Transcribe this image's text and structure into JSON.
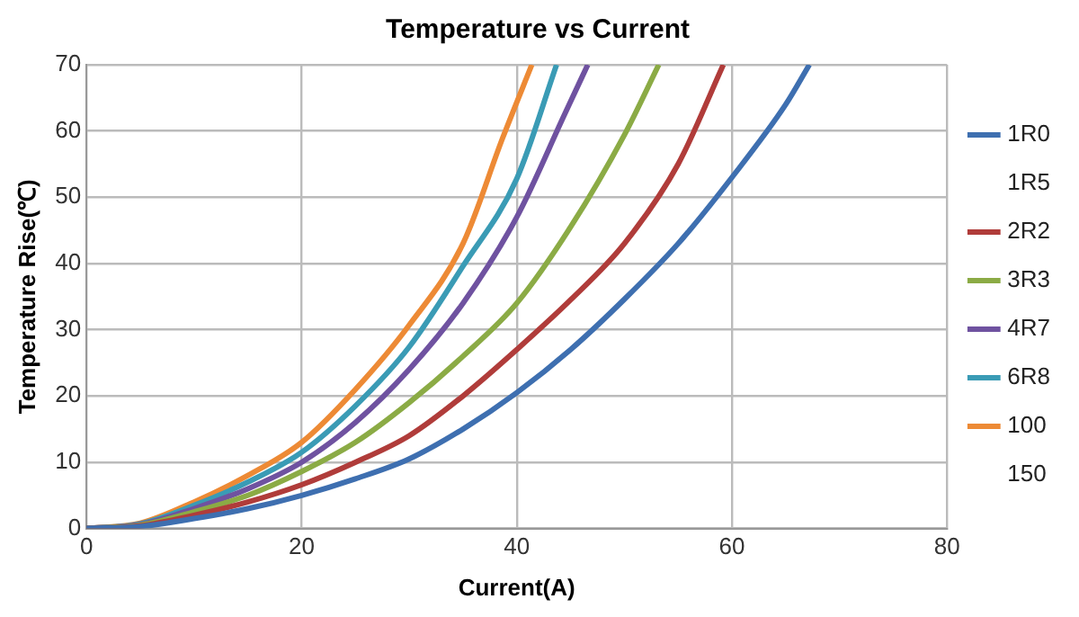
{
  "chart_data": {
    "type": "line",
    "title": "Temperature vs Current",
    "xlabel": "Current(A)",
    "ylabel": "Temperature Rise(℃)",
    "xlim": [
      0,
      80
    ],
    "xticks": [
      0,
      20,
      40,
      60,
      80
    ],
    "ylim": [
      0,
      70
    ],
    "yticks": [
      0,
      10,
      20,
      30,
      40,
      50,
      60,
      70
    ],
    "grid": true,
    "legend": "right",
    "marker": "none",
    "line_style": "solid",
    "series": [
      {
        "name": "1R0",
        "color": "#3e6fb0",
        "x": [
          0,
          5,
          10,
          15,
          20,
          25,
          30,
          35,
          40,
          45,
          50,
          55,
          60,
          65,
          67.2
        ],
        "values": [
          0,
          0.3,
          1.5,
          3,
          5,
          7.5,
          10.5,
          15,
          20.5,
          27,
          34.6,
          43,
          53,
          64,
          70
        ]
      },
      {
        "name": "1R5",
        "color": null
      },
      {
        "name": "2R2",
        "color": "#b03c3a",
        "x": [
          0,
          5,
          10,
          15,
          20,
          25,
          30,
          35,
          40,
          45,
          50,
          55,
          59.2
        ],
        "values": [
          0,
          0.4,
          2,
          4,
          6.6,
          10,
          14,
          20,
          27,
          34.5,
          43,
          55,
          70
        ]
      },
      {
        "name": "3R3",
        "color": "#8bab45",
        "x": [
          0,
          5,
          10,
          15,
          20,
          25,
          30,
          35,
          40,
          45,
          50,
          53.2
        ],
        "values": [
          0,
          0.5,
          2.5,
          5,
          8.6,
          13,
          19,
          26,
          34,
          45.5,
          59.4,
          70
        ]
      },
      {
        "name": "4R7",
        "color": "#6f52a0",
        "x": [
          0,
          5,
          10,
          15,
          20,
          25,
          30,
          35,
          40,
          44.5,
          46.6
        ],
        "values": [
          0,
          0.6,
          3,
          6,
          10,
          16,
          24,
          34,
          47,
          62.7,
          70
        ]
      },
      {
        "name": "6R8",
        "color": "#3a9bb5",
        "x": [
          0,
          5,
          10,
          15,
          20,
          25,
          30,
          35,
          40,
          43.7
        ],
        "values": [
          0,
          0.7,
          3.5,
          7,
          11.5,
          18.5,
          27.4,
          39.6,
          52.8,
          70
        ]
      },
      {
        "name": "100",
        "color": "#ed8a35",
        "x": [
          0,
          5,
          10,
          15,
          20,
          25,
          30,
          35,
          38.7,
          41.4
        ],
        "values": [
          0,
          0.8,
          4,
          8,
          13,
          21,
          30.7,
          43,
          59,
          70
        ]
      },
      {
        "name": "150",
        "color": null
      }
    ]
  }
}
